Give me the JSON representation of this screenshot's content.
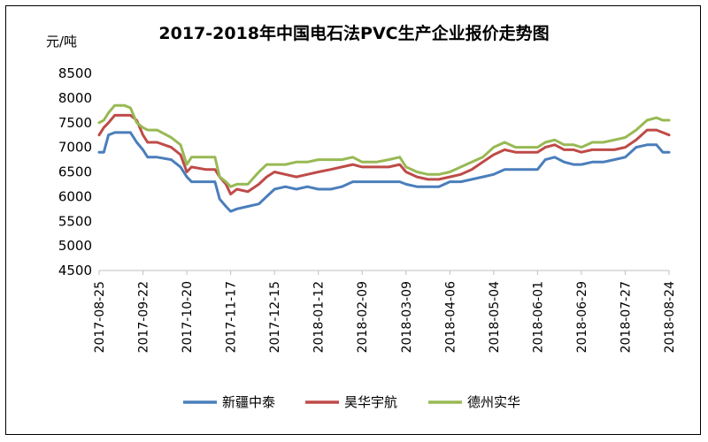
{
  "chart_data": {
    "type": "line",
    "title": "2017-2018年中国电石法PVC生产企业报价走势图",
    "unit_label": "元/吨",
    "ylim": [
      4500,
      8500
    ],
    "yticks": [
      "4500",
      "5000",
      "5500",
      "6000",
      "6500",
      "7000",
      "7500",
      "8000",
      "8500"
    ],
    "grid": false,
    "legend_position": "bottom",
    "x_start": "2017-08-25",
    "x_end": "2018-08-24",
    "x_tick_labels": [
      "2017-08-25",
      "2017-09-22",
      "2017-10-20",
      "2017-11-17",
      "2017-12-15",
      "2018-01-12",
      "2018-02-09",
      "2018-03-09",
      "2018-04-06",
      "2018-05-04",
      "2018-06-01",
      "2018-06-29",
      "2018-07-27",
      "2018-08-24"
    ],
    "series": [
      {
        "name": "新疆中泰",
        "color": "#4a7ebb",
        "points": [
          [
            "2017-08-25",
            6900
          ],
          [
            "2017-08-28",
            6900
          ],
          [
            "2017-08-31",
            7250
          ],
          [
            "2017-09-04",
            7300
          ],
          [
            "2017-09-10",
            7300
          ],
          [
            "2017-09-14",
            7300
          ],
          [
            "2017-09-18",
            7100
          ],
          [
            "2017-09-22",
            6950
          ],
          [
            "2017-09-25",
            6800
          ],
          [
            "2017-10-01",
            6800
          ],
          [
            "2017-10-10",
            6750
          ],
          [
            "2017-10-16",
            6600
          ],
          [
            "2017-10-20",
            6400
          ],
          [
            "2017-10-23",
            6300
          ],
          [
            "2017-11-01",
            6300
          ],
          [
            "2017-11-07",
            6300
          ],
          [
            "2017-11-10",
            5950
          ],
          [
            "2017-11-14",
            5800
          ],
          [
            "2017-11-17",
            5700
          ],
          [
            "2017-11-21",
            5750
          ],
          [
            "2017-11-28",
            5800
          ],
          [
            "2017-12-05",
            5850
          ],
          [
            "2017-12-10",
            6000
          ],
          [
            "2017-12-15",
            6150
          ],
          [
            "2017-12-22",
            6200
          ],
          [
            "2017-12-29",
            6150
          ],
          [
            "2018-01-05",
            6200
          ],
          [
            "2018-01-12",
            6150
          ],
          [
            "2018-01-20",
            6150
          ],
          [
            "2018-01-27",
            6200
          ],
          [
            "2018-02-03",
            6300
          ],
          [
            "2018-02-09",
            6300
          ],
          [
            "2018-02-18",
            6300
          ],
          [
            "2018-02-26",
            6300
          ],
          [
            "2018-03-05",
            6300
          ],
          [
            "2018-03-09",
            6250
          ],
          [
            "2018-03-16",
            6200
          ],
          [
            "2018-03-23",
            6200
          ],
          [
            "2018-03-30",
            6200
          ],
          [
            "2018-04-06",
            6300
          ],
          [
            "2018-04-13",
            6300
          ],
          [
            "2018-04-20",
            6350
          ],
          [
            "2018-04-27",
            6400
          ],
          [
            "2018-05-04",
            6450
          ],
          [
            "2018-05-11",
            6550
          ],
          [
            "2018-05-18",
            6550
          ],
          [
            "2018-05-25",
            6550
          ],
          [
            "2018-06-01",
            6550
          ],
          [
            "2018-06-06",
            6750
          ],
          [
            "2018-06-12",
            6800
          ],
          [
            "2018-06-18",
            6700
          ],
          [
            "2018-06-24",
            6650
          ],
          [
            "2018-06-29",
            6650
          ],
          [
            "2018-07-06",
            6700
          ],
          [
            "2018-07-13",
            6700
          ],
          [
            "2018-07-20",
            6750
          ],
          [
            "2018-07-27",
            6800
          ],
          [
            "2018-08-03",
            7000
          ],
          [
            "2018-08-10",
            7050
          ],
          [
            "2018-08-16",
            7050
          ],
          [
            "2018-08-20",
            6900
          ],
          [
            "2018-08-24",
            6900
          ]
        ]
      },
      {
        "name": "昊华宇航",
        "color": "#be4b48",
        "points": [
          [
            "2017-08-25",
            7250
          ],
          [
            "2017-08-28",
            7400
          ],
          [
            "2017-08-31",
            7500
          ],
          [
            "2017-09-04",
            7650
          ],
          [
            "2017-09-10",
            7650
          ],
          [
            "2017-09-14",
            7650
          ],
          [
            "2017-09-18",
            7550
          ],
          [
            "2017-09-22",
            7250
          ],
          [
            "2017-09-25",
            7100
          ],
          [
            "2017-10-01",
            7100
          ],
          [
            "2017-10-10",
            7000
          ],
          [
            "2017-10-16",
            6850
          ],
          [
            "2017-10-20",
            6500
          ],
          [
            "2017-10-23",
            6600
          ],
          [
            "2017-11-01",
            6550
          ],
          [
            "2017-11-07",
            6550
          ],
          [
            "2017-11-10",
            6400
          ],
          [
            "2017-11-14",
            6250
          ],
          [
            "2017-11-17",
            6050
          ],
          [
            "2017-11-21",
            6150
          ],
          [
            "2017-11-28",
            6100
          ],
          [
            "2017-12-05",
            6250
          ],
          [
            "2017-12-10",
            6400
          ],
          [
            "2017-12-15",
            6500
          ],
          [
            "2017-12-22",
            6450
          ],
          [
            "2017-12-29",
            6400
          ],
          [
            "2018-01-05",
            6450
          ],
          [
            "2018-01-12",
            6500
          ],
          [
            "2018-01-20",
            6550
          ],
          [
            "2018-01-27",
            6600
          ],
          [
            "2018-02-03",
            6650
          ],
          [
            "2018-02-09",
            6600
          ],
          [
            "2018-02-18",
            6600
          ],
          [
            "2018-02-26",
            6600
          ],
          [
            "2018-03-05",
            6650
          ],
          [
            "2018-03-09",
            6500
          ],
          [
            "2018-03-16",
            6400
          ],
          [
            "2018-03-23",
            6350
          ],
          [
            "2018-03-30",
            6350
          ],
          [
            "2018-04-06",
            6400
          ],
          [
            "2018-04-13",
            6450
          ],
          [
            "2018-04-20",
            6550
          ],
          [
            "2018-04-27",
            6700
          ],
          [
            "2018-05-04",
            6850
          ],
          [
            "2018-05-11",
            6950
          ],
          [
            "2018-05-18",
            6900
          ],
          [
            "2018-05-25",
            6900
          ],
          [
            "2018-06-01",
            6900
          ],
          [
            "2018-06-06",
            7000
          ],
          [
            "2018-06-12",
            7050
          ],
          [
            "2018-06-18",
            6950
          ],
          [
            "2018-06-24",
            6950
          ],
          [
            "2018-06-29",
            6900
          ],
          [
            "2018-07-06",
            6950
          ],
          [
            "2018-07-13",
            6950
          ],
          [
            "2018-07-20",
            6950
          ],
          [
            "2018-07-27",
            7000
          ],
          [
            "2018-08-03",
            7150
          ],
          [
            "2018-08-10",
            7350
          ],
          [
            "2018-08-16",
            7350
          ],
          [
            "2018-08-20",
            7300
          ],
          [
            "2018-08-24",
            7250
          ]
        ]
      },
      {
        "name": "德州实华",
        "color": "#98b954",
        "points": [
          [
            "2017-08-25",
            7500
          ],
          [
            "2017-08-28",
            7550
          ],
          [
            "2017-08-31",
            7700
          ],
          [
            "2017-09-04",
            7850
          ],
          [
            "2017-09-10",
            7850
          ],
          [
            "2017-09-14",
            7800
          ],
          [
            "2017-09-18",
            7500
          ],
          [
            "2017-09-22",
            7400
          ],
          [
            "2017-09-25",
            7350
          ],
          [
            "2017-10-01",
            7350
          ],
          [
            "2017-10-10",
            7200
          ],
          [
            "2017-10-16",
            7050
          ],
          [
            "2017-10-20",
            6650
          ],
          [
            "2017-10-23",
            6800
          ],
          [
            "2017-11-01",
            6800
          ],
          [
            "2017-11-07",
            6800
          ],
          [
            "2017-11-10",
            6400
          ],
          [
            "2017-11-14",
            6300
          ],
          [
            "2017-11-17",
            6200
          ],
          [
            "2017-11-21",
            6250
          ],
          [
            "2017-11-28",
            6250
          ],
          [
            "2017-12-05",
            6500
          ],
          [
            "2017-12-10",
            6650
          ],
          [
            "2017-12-15",
            6650
          ],
          [
            "2017-12-22",
            6650
          ],
          [
            "2017-12-29",
            6700
          ],
          [
            "2018-01-05",
            6700
          ],
          [
            "2018-01-12",
            6750
          ],
          [
            "2018-01-20",
            6750
          ],
          [
            "2018-01-27",
            6750
          ],
          [
            "2018-02-03",
            6800
          ],
          [
            "2018-02-09",
            6700
          ],
          [
            "2018-02-18",
            6700
          ],
          [
            "2018-02-26",
            6750
          ],
          [
            "2018-03-05",
            6800
          ],
          [
            "2018-03-09",
            6600
          ],
          [
            "2018-03-16",
            6500
          ],
          [
            "2018-03-23",
            6450
          ],
          [
            "2018-03-30",
            6450
          ],
          [
            "2018-04-06",
            6500
          ],
          [
            "2018-04-13",
            6600
          ],
          [
            "2018-04-20",
            6700
          ],
          [
            "2018-04-27",
            6800
          ],
          [
            "2018-05-04",
            7000
          ],
          [
            "2018-05-11",
            7100
          ],
          [
            "2018-05-18",
            7000
          ],
          [
            "2018-05-25",
            7000
          ],
          [
            "2018-06-01",
            7000
          ],
          [
            "2018-06-06",
            7100
          ],
          [
            "2018-06-12",
            7150
          ],
          [
            "2018-06-18",
            7050
          ],
          [
            "2018-06-24",
            7050
          ],
          [
            "2018-06-29",
            7000
          ],
          [
            "2018-07-06",
            7100
          ],
          [
            "2018-07-13",
            7100
          ],
          [
            "2018-07-20",
            7150
          ],
          [
            "2018-07-27",
            7200
          ],
          [
            "2018-08-03",
            7350
          ],
          [
            "2018-08-10",
            7550
          ],
          [
            "2018-08-16",
            7600
          ],
          [
            "2018-08-20",
            7550
          ],
          [
            "2018-08-24",
            7550
          ]
        ]
      }
    ]
  }
}
